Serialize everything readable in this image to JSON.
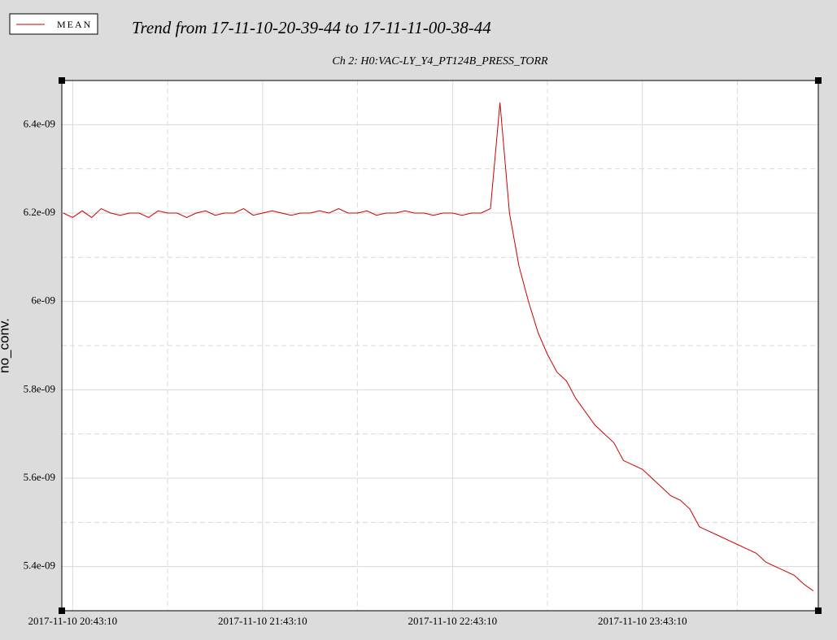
{
  "chart_data": {
    "type": "line",
    "title": "Trend from 17-11-10-20-39-44 to 17-11-11-00-38-44",
    "subtitle": "Ch 2: H0:VAC-LY_Y4_PT124B_PRESS_TORR",
    "y_label": "no_conv.",
    "x": [
      "2017-11-10 20:40:10",
      "2017-11-10 20:43:10",
      "2017-11-10 20:46:10",
      "2017-11-10 20:49:10",
      "2017-11-10 20:52:10",
      "2017-11-10 20:55:10",
      "2017-11-10 20:58:10",
      "2017-11-10 21:01:10",
      "2017-11-10 21:04:10",
      "2017-11-10 21:07:10",
      "2017-11-10 21:10:10",
      "2017-11-10 21:13:10",
      "2017-11-10 21:16:10",
      "2017-11-10 21:19:10",
      "2017-11-10 21:22:10",
      "2017-11-10 21:25:10",
      "2017-11-10 21:28:10",
      "2017-11-10 21:31:10",
      "2017-11-10 21:34:10",
      "2017-11-10 21:37:10",
      "2017-11-10 21:40:10",
      "2017-11-10 21:43:10",
      "2017-11-10 21:46:10",
      "2017-11-10 21:49:10",
      "2017-11-10 21:52:10",
      "2017-11-10 21:55:10",
      "2017-11-10 21:58:10",
      "2017-11-10 22:01:10",
      "2017-11-10 22:04:10",
      "2017-11-10 22:07:10",
      "2017-11-10 22:10:10",
      "2017-11-10 22:13:10",
      "2017-11-10 22:16:10",
      "2017-11-10 22:19:10",
      "2017-11-10 22:22:10",
      "2017-11-10 22:25:10",
      "2017-11-10 22:28:10",
      "2017-11-10 22:31:10",
      "2017-11-10 22:34:10",
      "2017-11-10 22:37:10",
      "2017-11-10 22:40:10",
      "2017-11-10 22:43:10",
      "2017-11-10 22:46:10",
      "2017-11-10 22:49:10",
      "2017-11-10 22:52:10",
      "2017-11-10 22:55:10",
      "2017-11-10 22:58:10",
      "2017-11-10 23:01:10",
      "2017-11-10 23:04:10",
      "2017-11-10 23:07:10",
      "2017-11-10 23:10:10",
      "2017-11-10 23:13:10",
      "2017-11-10 23:16:10",
      "2017-11-10 23:19:10",
      "2017-11-10 23:22:10",
      "2017-11-10 23:25:10",
      "2017-11-10 23:28:10",
      "2017-11-10 23:31:10",
      "2017-11-10 23:34:10",
      "2017-11-10 23:37:10",
      "2017-11-10 23:40:10",
      "2017-11-10 23:43:10",
      "2017-11-10 23:46:10",
      "2017-11-10 23:49:10",
      "2017-11-10 23:52:10",
      "2017-11-10 23:55:10",
      "2017-11-10 23:58:10",
      "2017-11-11 00:01:10",
      "2017-11-11 00:04:10",
      "2017-11-11 00:07:10",
      "2017-11-11 00:10:10",
      "2017-11-11 00:13:10",
      "2017-11-11 00:16:10",
      "2017-11-11 00:19:10",
      "2017-11-11 00:22:10",
      "2017-11-11 00:25:10",
      "2017-11-11 00:28:10",
      "2017-11-11 00:31:10",
      "2017-11-11 00:34:10",
      "2017-11-11 00:37:10"
    ],
    "series": [
      {
        "name": "MEAN",
        "color": "#cc0000",
        "values": [
          6.2e-09,
          6.19e-09,
          6.205e-09,
          6.19e-09,
          6.21e-09,
          6.2e-09,
          6.195e-09,
          6.2e-09,
          6.2e-09,
          6.19e-09,
          6.205e-09,
          6.2e-09,
          6.2e-09,
          6.19e-09,
          6.2e-09,
          6.205e-09,
          6.195e-09,
          6.2e-09,
          6.2e-09,
          6.21e-09,
          6.195e-09,
          6.2e-09,
          6.205e-09,
          6.2e-09,
          6.195e-09,
          6.2e-09,
          6.2e-09,
          6.205e-09,
          6.2e-09,
          6.21e-09,
          6.2e-09,
          6.2e-09,
          6.205e-09,
          6.195e-09,
          6.2e-09,
          6.2e-09,
          6.205e-09,
          6.2e-09,
          6.2e-09,
          6.195e-09,
          6.2e-09,
          6.2e-09,
          6.195e-09,
          6.2e-09,
          6.2e-09,
          6.21e-09,
          6.45e-09,
          6.2e-09,
          6.08e-09,
          6e-09,
          5.93e-09,
          5.88e-09,
          5.84e-09,
          5.82e-09,
          5.78e-09,
          5.75e-09,
          5.72e-09,
          5.7e-09,
          5.68e-09,
          5.64e-09,
          5.63e-09,
          5.62e-09,
          5.6e-09,
          5.58e-09,
          5.56e-09,
          5.55e-09,
          5.53e-09,
          5.49e-09,
          5.48e-09,
          5.47e-09,
          5.46e-09,
          5.45e-09,
          5.44e-09,
          5.43e-09,
          5.41e-09,
          5.4e-09,
          5.39e-09,
          5.38e-09,
          5.36e-09,
          5.345e-09
        ]
      }
    ],
    "xlim": [
      "2017-11-10 20:39:44",
      "2017-11-11 00:38:44"
    ],
    "xticks": [
      "2017-11-10 20:43:10",
      "2017-11-10 21:43:10",
      "2017-11-10 22:43:10",
      "2017-11-10 23:43:10"
    ],
    "ylim": [
      5.3e-09,
      6.5e-09
    ],
    "yticks": [
      {
        "value": 5.4e-09,
        "label": "5.4e-09"
      },
      {
        "value": 5.6e-09,
        "label": "5.6e-09"
      },
      {
        "value": 5.8e-09,
        "label": "5.8e-09"
      },
      {
        "value": 6e-09,
        "label": "6e-09"
      },
      {
        "value": 6.2e-09,
        "label": "6.2e-09"
      },
      {
        "value": 6.4e-09,
        "label": "6.4e-09"
      }
    ],
    "grid": true,
    "minor_grid": true,
    "legend": "top-left"
  }
}
